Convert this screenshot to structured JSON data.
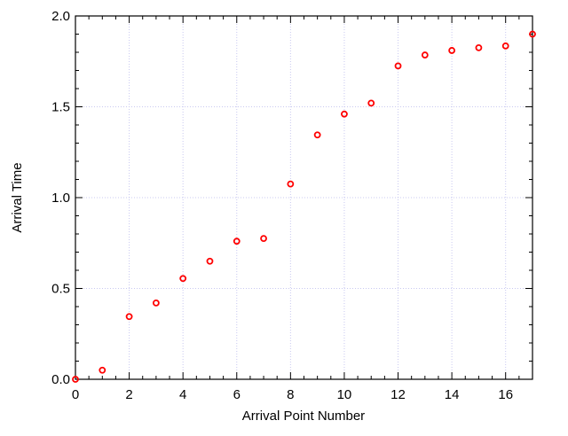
{
  "chart_data": {
    "type": "scatter",
    "title": "",
    "xlabel": "Arrival Point Number",
    "ylabel": "Arrival Time",
    "xlim": [
      0,
      17
    ],
    "ylim": [
      0.0,
      2.0
    ],
    "grid": true,
    "legend": "none",
    "x_ticks": [
      0,
      2,
      4,
      6,
      8,
      10,
      12,
      14,
      16
    ],
    "x_tick_labels": [
      "0",
      "2",
      "4",
      "6",
      "8",
      "10",
      "12",
      "14",
      "16"
    ],
    "y_ticks": [
      0.0,
      0.5,
      1.0,
      1.5,
      2.0
    ],
    "y_tick_labels": [
      "0.0",
      "0.5",
      "1.0",
      "1.5",
      "2.0"
    ],
    "marker_color": "#ff0000",
    "grid_color": "#c8c8f0",
    "series": [
      {
        "x": [
          0,
          1,
          2,
          3,
          4,
          5,
          6,
          7,
          8,
          9,
          10,
          11,
          12,
          13,
          14,
          15,
          16,
          17
        ],
        "y": [
          0.0,
          0.05,
          0.345,
          0.42,
          0.555,
          0.65,
          0.76,
          0.775,
          1.075,
          1.345,
          1.46,
          1.52,
          1.725,
          1.785,
          1.81,
          1.825,
          1.835,
          1.9
        ]
      }
    ]
  }
}
